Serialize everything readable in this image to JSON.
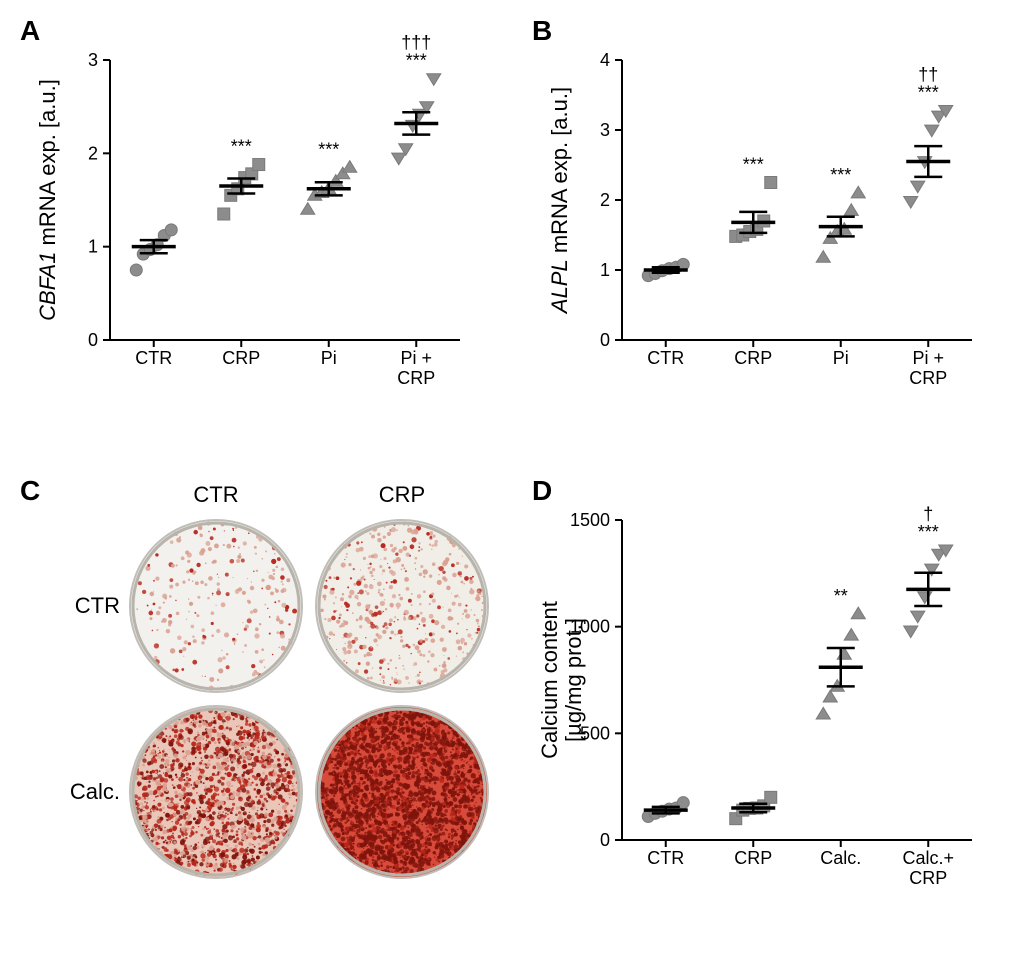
{
  "panelA": {
    "label": "A",
    "type": "scatter-bar",
    "ylabel_prefix_italic": "CBFA1",
    "ylabel_suffix": " mRNA exp. [a.u.]",
    "ylim": [
      0,
      3
    ],
    "ytick_step": 1,
    "categories": [
      "CTR",
      "CRP",
      "Pi",
      "Pi +\nCRP"
    ],
    "means": [
      1.0,
      1.65,
      1.62,
      2.32
    ],
    "sems": [
      0.07,
      0.08,
      0.07,
      0.12
    ],
    "points": [
      [
        0.75,
        0.92,
        0.97,
        1.02,
        1.12,
        1.18
      ],
      [
        1.35,
        1.55,
        1.62,
        1.74,
        1.78,
        1.88
      ],
      [
        1.4,
        1.55,
        1.58,
        1.62,
        1.7,
        1.78,
        1.85
      ],
      [
        1.95,
        2.05,
        2.3,
        2.42,
        2.5,
        2.8
      ]
    ],
    "markers": [
      "circle",
      "square",
      "triangle-up",
      "triangle-down"
    ],
    "point_color": "#8c8c8c",
    "error_color": "#000000",
    "sig_top": [
      "",
      "***",
      "***",
      "***"
    ],
    "sig_top2": [
      "",
      "",
      "",
      "†††"
    ],
    "axis_color": "#000000",
    "label_fontsize": 22,
    "tick_fontsize": 18
  },
  "panelB": {
    "label": "B",
    "type": "scatter-bar",
    "ylabel_prefix_italic": "ALPL",
    "ylabel_suffix": " mRNA exp. [a.u.]",
    "ylim": [
      0,
      4
    ],
    "ytick_step": 1,
    "categories": [
      "CTR",
      "CRP",
      "Pi",
      "Pi +\nCRP"
    ],
    "means": [
      1.0,
      1.68,
      1.62,
      2.55
    ],
    "sems": [
      0.04,
      0.15,
      0.14,
      0.22
    ],
    "points": [
      [
        0.92,
        0.95,
        0.99,
        1.02,
        1.04,
        1.08
      ],
      [
        1.48,
        1.5,
        1.55,
        1.58,
        1.7,
        2.25
      ],
      [
        1.18,
        1.45,
        1.55,
        1.58,
        1.85,
        2.1
      ],
      [
        1.98,
        2.2,
        2.55,
        3.0,
        3.2,
        3.28
      ]
    ],
    "markers": [
      "circle",
      "square",
      "triangle-up",
      "triangle-down"
    ],
    "point_color": "#8c8c8c",
    "error_color": "#000000",
    "sig_top": [
      "",
      "***",
      "***",
      "***"
    ],
    "sig_top2": [
      "",
      "",
      "",
      "††"
    ],
    "axis_color": "#000000",
    "label_fontsize": 22,
    "tick_fontsize": 18
  },
  "panelC": {
    "label": "C",
    "col_labels": [
      "CTR",
      "CRP"
    ],
    "row_labels": [
      "CTR",
      "Calc."
    ],
    "wells": [
      {
        "bg": "#f3f1ee",
        "stain": "light",
        "density": 0.1
      },
      {
        "bg": "#f1eee8",
        "stain": "light",
        "density": 0.18
      },
      {
        "bg": "#e9c6b8",
        "stain": "heavy",
        "density": 0.65
      },
      {
        "bg": "#d84a3a",
        "stain": "veryheavy",
        "density": 0.92
      }
    ],
    "stain_light": "#d9a090",
    "stain_heavy": "#b8261a",
    "stain_dark": "#7f140c"
  },
  "panelD": {
    "label": "D",
    "type": "scatter-bar",
    "ylabel": "Calcium content\n[µg/mg prot.]",
    "ylim": [
      0,
      1500
    ],
    "ytick_step": 500,
    "categories": [
      "CTR",
      "CRP",
      "Calc.",
      "Calc.+\nCRP"
    ],
    "means": [
      140,
      150,
      810,
      1175
    ],
    "sems": [
      15,
      20,
      90,
      78
    ],
    "points": [
      [
        110,
        125,
        135,
        145,
        150,
        175
      ],
      [
        100,
        140,
        148,
        150,
        160,
        200
      ],
      [
        590,
        670,
        720,
        870,
        960,
        1060
      ],
      [
        980,
        1050,
        1140,
        1270,
        1340,
        1360
      ]
    ],
    "markers": [
      "circle",
      "square",
      "triangle-up",
      "triangle-down"
    ],
    "point_color": "#8c8c8c",
    "error_color": "#000000",
    "sig_top": [
      "",
      "",
      "**",
      "***"
    ],
    "sig_top2": [
      "",
      "",
      "",
      "†"
    ],
    "axis_color": "#000000",
    "label_fontsize": 22,
    "tick_fontsize": 18
  }
}
